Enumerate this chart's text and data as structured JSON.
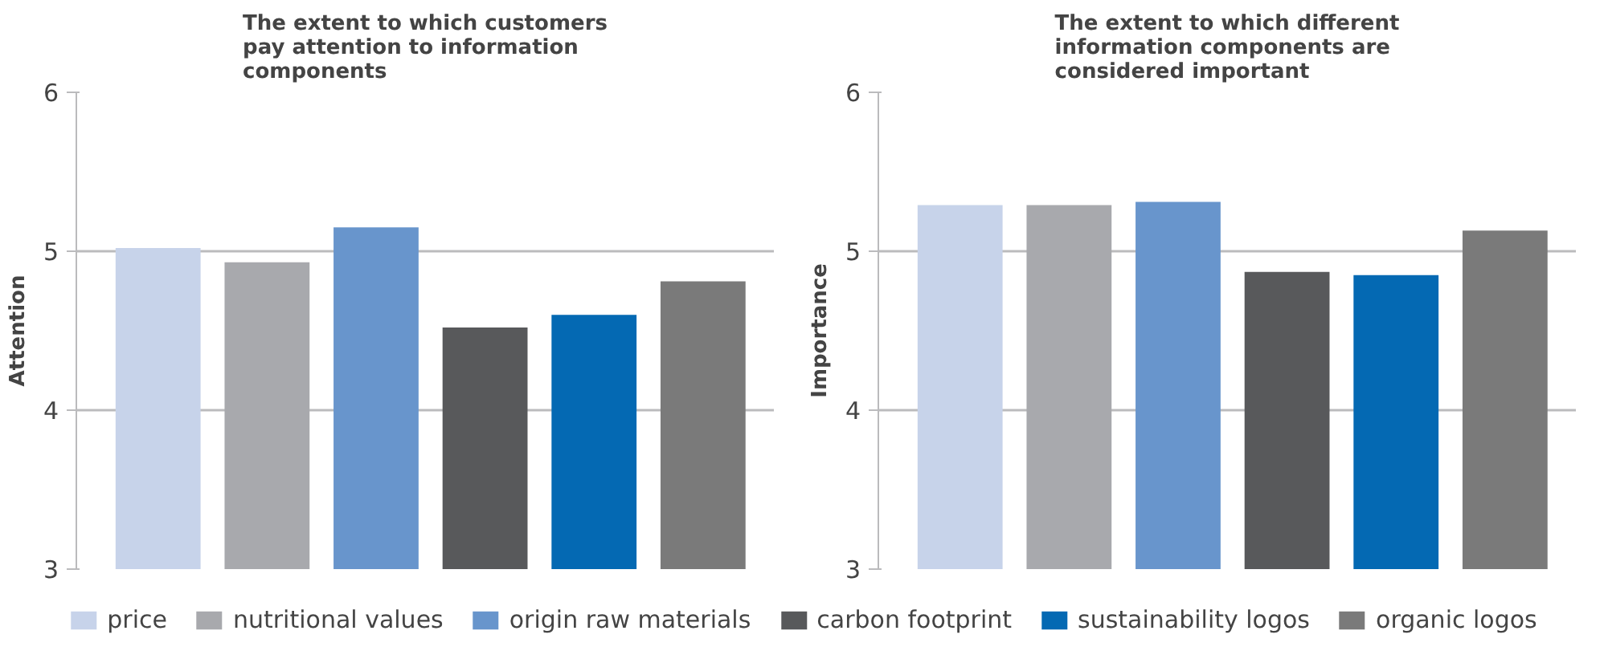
{
  "chart_data": [
    {
      "type": "bar",
      "title": "The extent to which customers pay attention to information components",
      "ylabel": "Attention",
      "categories": [
        null,
        null,
        null,
        null,
        null,
        null
      ],
      "ylim": [
        3,
        6
      ],
      "yticks": [
        3,
        4,
        5,
        6
      ],
      "grid": "y",
      "tick_labels": "y",
      "legend": "bottom",
      "series": [
        {
          "name": "price",
          "color": "#c7d3ea",
          "values": [
            5.02,
            null,
            null,
            null,
            null,
            null
          ]
        },
        {
          "name": "nutritional values",
          "color": "#a8a9ad",
          "values": [
            null,
            4.93,
            null,
            null,
            null,
            null
          ]
        },
        {
          "name": "origin raw materials",
          "color": "#6895cc",
          "values": [
            null,
            null,
            5.15,
            null,
            null,
            null
          ]
        },
        {
          "name": "carbon footprint",
          "color": "#58595b",
          "values": [
            null,
            null,
            null,
            4.52,
            null,
            null
          ]
        },
        {
          "name": "sustainability logos",
          "color": "#0469b3",
          "values": [
            null,
            null,
            null,
            null,
            4.6,
            null
          ]
        },
        {
          "name": "organic logos",
          "color": "#7a7a7a",
          "values": [
            null,
            null,
            null,
            null,
            null,
            4.81
          ]
        }
      ]
    },
    {
      "type": "bar",
      "title": "The extent to which different information components are considered important",
      "ylabel": "Importance",
      "categories": [
        null,
        null,
        null,
        null,
        null,
        null
      ],
      "ylim": [
        3,
        6
      ],
      "yticks": [
        3,
        4,
        5,
        6
      ],
      "grid": "y",
      "tick_labels": "y",
      "series": [
        {
          "color": "#c7d3ea",
          "values": [
            5.29,
            null,
            null,
            null,
            null,
            null
          ]
        },
        {
          "color": "#a8a9ad",
          "values": [
            null,
            5.29,
            null,
            null,
            null,
            null
          ]
        },
        {
          "color": "#6895cc",
          "values": [
            null,
            null,
            5.31,
            null,
            null,
            null
          ]
        },
        {
          "color": "#58595b",
          "values": [
            null,
            null,
            null,
            4.87,
            null,
            null
          ]
        },
        {
          "color": "#0469b3",
          "values": [
            null,
            null,
            null,
            null,
            4.85,
            null
          ]
        },
        {
          "color": "#7a7a7a",
          "values": [
            null,
            null,
            null,
            null,
            null,
            5.13
          ]
        }
      ]
    }
  ]
}
